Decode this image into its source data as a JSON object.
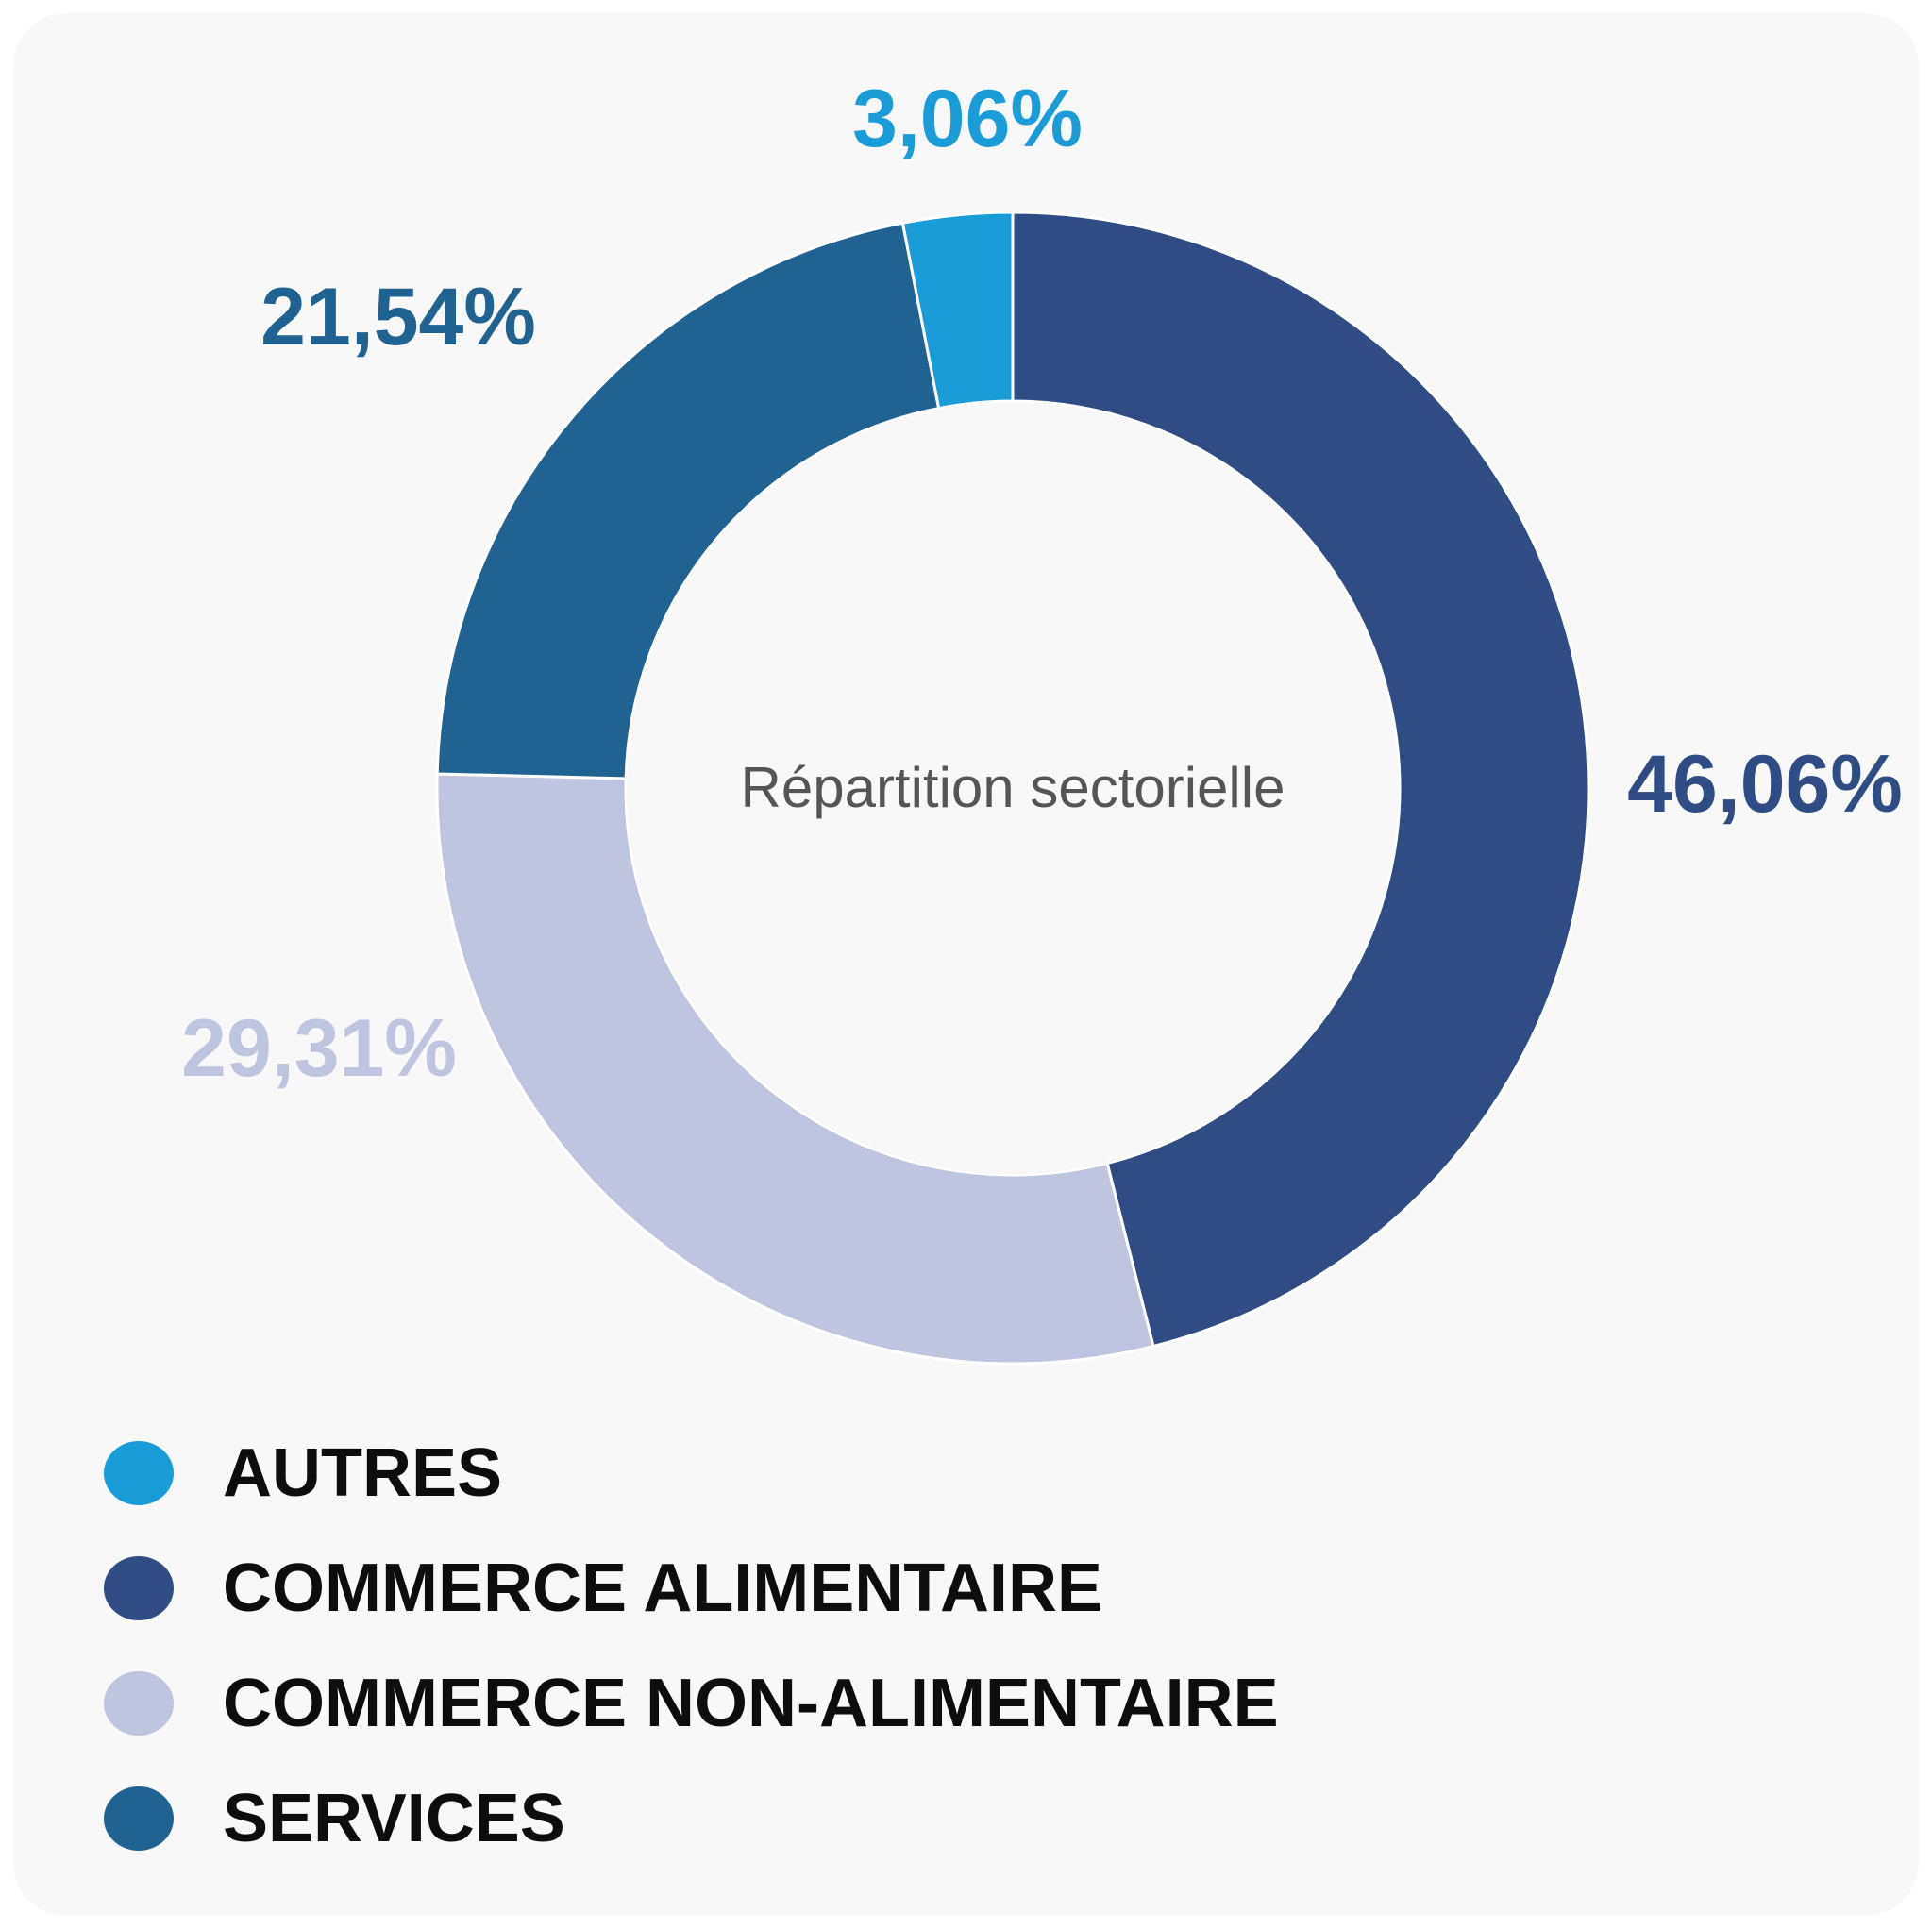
{
  "chart_data": {
    "type": "pie",
    "title": "Répartition sectorielle",
    "categories": [
      "AUTRES",
      "COMMERCE ALIMENTAIRE",
      "COMMERCE NON-ALIMENTAIRE",
      "SERVICES"
    ],
    "values": [
      3.06,
      46.06,
      29.31,
      21.54
    ],
    "value_labels": [
      "3,06%",
      "46,06%",
      "29,31%",
      "21,54%"
    ],
    "donut": true,
    "legend_position": "bottom-left",
    "draw_order": [
      0,
      1,
      2,
      3
    ]
  },
  "colors": {
    "AUTRES": "#1a9cd8",
    "COMMERCE ALIMENTAIRE": "#2f4c85",
    "COMMERCE NON-ALIMENTAIRE": "#bfc4df",
    "SERVICES": "#206393"
  },
  "legend": [
    {
      "label": "AUTRES",
      "color": "#1a9cd8"
    },
    {
      "label": "COMMERCE ALIMENTAIRE",
      "color": "#2f4c85"
    },
    {
      "label": "COMMERCE NON-ALIMENTAIRE",
      "color": "#bfc4df"
    },
    {
      "label": "SERVICES",
      "color": "#206393"
    }
  ]
}
